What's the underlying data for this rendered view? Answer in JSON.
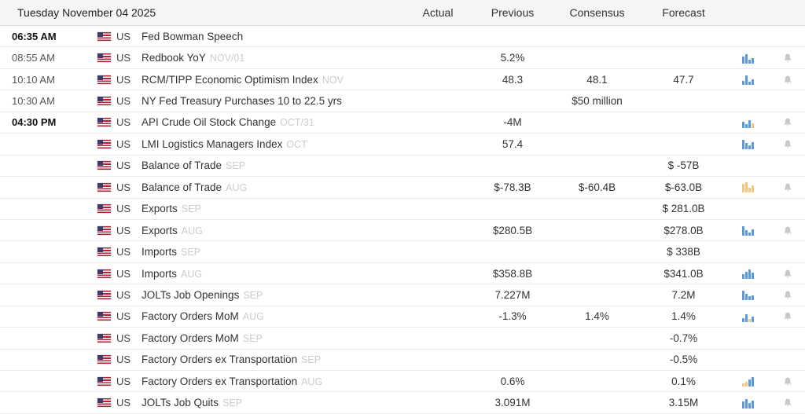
{
  "header": {
    "date": "Tuesday November 04 2025",
    "columns": [
      "Actual",
      "Previous",
      "Consensus",
      "Forecast"
    ]
  },
  "colors": {
    "positive": "#008000",
    "negative": "#990000",
    "spark_blue": "#5b9bd5",
    "spark_amber": "#f3c77e",
    "header_bg": "#f5f5f5"
  },
  "rows": [
    {
      "time": "06:35 AM",
      "bold": true,
      "country": "US",
      "event": "Fed Bowman Speech",
      "ref": "",
      "actual": "",
      "previous": "",
      "previous_color": "",
      "consensus": "",
      "consensus_color": "",
      "forecast": "",
      "spark": null,
      "bell": false
    },
    {
      "time": "08:55 AM",
      "bold": false,
      "country": "US",
      "event": "Redbook YoY",
      "ref": "NOV/01",
      "actual": "",
      "previous": "5.2%",
      "previous_color": "pos",
      "consensus": "",
      "consensus_color": "",
      "forecast": "",
      "spark": [
        {
          "h": 9,
          "c": "b"
        },
        {
          "h": 12,
          "c": "b"
        },
        {
          "h": 5,
          "c": "b"
        },
        {
          "h": 7,
          "c": "b"
        }
      ],
      "bell": true
    },
    {
      "time": "10:10 AM",
      "bold": false,
      "country": "US",
      "event": "RCM/TIPP Economic Optimism Index",
      "ref": "NOV",
      "actual": "",
      "previous": "48.3",
      "previous_color": "pos",
      "consensus": "48.1",
      "consensus_color": "",
      "forecast": "47.7",
      "spark": [
        {
          "h": 5,
          "c": "b"
        },
        {
          "h": 12,
          "c": "b"
        },
        {
          "h": 4,
          "c": "b"
        },
        {
          "h": 7,
          "c": "b"
        }
      ],
      "bell": true
    },
    {
      "time": "10:30 AM",
      "bold": false,
      "country": "US",
      "event": "NY Fed Treasury Purchases 10 to 22.5 yrs",
      "ref": "",
      "actual": "",
      "previous": "",
      "previous_color": "",
      "consensus": "$50 million",
      "consensus_color": "pos",
      "forecast": "",
      "spark": null,
      "bell": false
    },
    {
      "time": "04:30 PM",
      "bold": true,
      "country": "US",
      "event": "API Crude Oil Stock Change",
      "ref": "OCT/31",
      "actual": "",
      "previous": "-4M",
      "previous_color": "neg",
      "consensus": "",
      "consensus_color": "",
      "forecast": "",
      "spark": [
        {
          "h": 8,
          "c": "b"
        },
        {
          "h": 5,
          "c": "b"
        },
        {
          "h": 10,
          "c": "b"
        },
        {
          "h": 6,
          "c": "o"
        }
      ],
      "bell": true
    },
    {
      "time": "",
      "bold": false,
      "country": "US",
      "event": "LMI Logistics Managers Index",
      "ref": "OCT",
      "actual": "",
      "previous": "57.4",
      "previous_color": "pos",
      "consensus": "",
      "consensus_color": "",
      "forecast": "",
      "spark": [
        {
          "h": 12,
          "c": "b"
        },
        {
          "h": 8,
          "c": "b"
        },
        {
          "h": 5,
          "c": "b"
        },
        {
          "h": 9,
          "c": "b"
        }
      ],
      "bell": true
    },
    {
      "time": "",
      "bold": false,
      "country": "US",
      "event": "Balance of Trade",
      "ref": "SEP",
      "actual": "",
      "previous": "",
      "previous_color": "",
      "consensus": "",
      "consensus_color": "",
      "forecast": "$ -57B",
      "spark": null,
      "bell": false
    },
    {
      "time": "",
      "bold": false,
      "country": "US",
      "event": "Balance of Trade",
      "ref": "AUG",
      "actual": "",
      "previous": "$-78.3B",
      "previous_color": "neg",
      "consensus": "$-60.4B",
      "consensus_color": "",
      "forecast": "$-63.0B",
      "spark": [
        {
          "h": 11,
          "c": "o"
        },
        {
          "h": 13,
          "c": "o"
        },
        {
          "h": 6,
          "c": "o"
        },
        {
          "h": 9,
          "c": "o"
        }
      ],
      "bell": true
    },
    {
      "time": "",
      "bold": false,
      "country": "US",
      "event": "Exports",
      "ref": "SEP",
      "actual": "",
      "previous": "",
      "previous_color": "",
      "consensus": "",
      "consensus_color": "",
      "forecast": "$ 281.0B",
      "spark": null,
      "bell": false
    },
    {
      "time": "",
      "bold": false,
      "country": "US",
      "event": "Exports",
      "ref": "AUG",
      "actual": "",
      "previous": "$280.5B",
      "previous_color": "pos",
      "consensus": "",
      "consensus_color": "",
      "forecast": "$278.0B",
      "spark": [
        {
          "h": 12,
          "c": "b"
        },
        {
          "h": 7,
          "c": "b"
        },
        {
          "h": 4,
          "c": "b"
        },
        {
          "h": 8,
          "c": "b"
        }
      ],
      "bell": true
    },
    {
      "time": "",
      "bold": false,
      "country": "US",
      "event": "Imports",
      "ref": "SEP",
      "actual": "",
      "previous": "",
      "previous_color": "",
      "consensus": "",
      "consensus_color": "",
      "forecast": "$ 338B",
      "spark": null,
      "bell": false
    },
    {
      "time": "",
      "bold": false,
      "country": "US",
      "event": "Imports",
      "ref": "AUG",
      "actual": "",
      "previous": "$358.8B",
      "previous_color": "pos",
      "consensus": "",
      "consensus_color": "",
      "forecast": "$341.0B",
      "spark": [
        {
          "h": 6,
          "c": "b"
        },
        {
          "h": 9,
          "c": "b"
        },
        {
          "h": 12,
          "c": "b"
        },
        {
          "h": 8,
          "c": "b"
        }
      ],
      "bell": true
    },
    {
      "time": "",
      "bold": false,
      "country": "US",
      "event": "JOLTs Job Openings",
      "ref": "SEP",
      "actual": "",
      "previous": "7.227M",
      "previous_color": "pos",
      "consensus": "",
      "consensus_color": "",
      "forecast": "7.2M",
      "spark": [
        {
          "h": 12,
          "c": "b"
        },
        {
          "h": 8,
          "c": "b"
        },
        {
          "h": 5,
          "c": "b"
        },
        {
          "h": 6,
          "c": "b"
        }
      ],
      "bell": true
    },
    {
      "time": "",
      "bold": false,
      "country": "US",
      "event": "Factory Orders MoM",
      "ref": "AUG",
      "actual": "",
      "previous": "-1.3%",
      "previous_color": "neg",
      "consensus": "1.4%",
      "consensus_color": "",
      "forecast": "1.4%",
      "spark": [
        {
          "h": 5,
          "c": "b"
        },
        {
          "h": 10,
          "c": "b"
        },
        {
          "h": 4,
          "c": "o"
        },
        {
          "h": 7,
          "c": "b"
        }
      ],
      "bell": true
    },
    {
      "time": "",
      "bold": false,
      "country": "US",
      "event": "Factory Orders MoM",
      "ref": "SEP",
      "actual": "",
      "previous": "",
      "previous_color": "",
      "consensus": "",
      "consensus_color": "",
      "forecast": "-0.7%",
      "spark": null,
      "bell": false
    },
    {
      "time": "",
      "bold": false,
      "country": "US",
      "event": "Factory Orders ex Transportation",
      "ref": "SEP",
      "actual": "",
      "previous": "",
      "previous_color": "",
      "consensus": "",
      "consensus_color": "",
      "forecast": "-0.5%",
      "spark": null,
      "bell": false
    },
    {
      "time": "",
      "bold": false,
      "country": "US",
      "event": "Factory Orders ex Transportation",
      "ref": "AUG",
      "actual": "",
      "previous": "0.6%",
      "previous_color": "pos",
      "consensus": "",
      "consensus_color": "",
      "forecast": "0.1%",
      "spark": [
        {
          "h": 4,
          "c": "o"
        },
        {
          "h": 6,
          "c": "o"
        },
        {
          "h": 9,
          "c": "b"
        },
        {
          "h": 12,
          "c": "b"
        }
      ],
      "bell": true
    },
    {
      "time": "",
      "bold": false,
      "country": "US",
      "event": "JOLTs Job Quits",
      "ref": "SEP",
      "actual": "",
      "previous": "3.091M",
      "previous_color": "pos",
      "consensus": "",
      "consensus_color": "",
      "forecast": "3.15M",
      "spark": [
        {
          "h": 9,
          "c": "b"
        },
        {
          "h": 12,
          "c": "b"
        },
        {
          "h": 7,
          "c": "b"
        },
        {
          "h": 10,
          "c": "b"
        }
      ],
      "bell": true
    }
  ]
}
